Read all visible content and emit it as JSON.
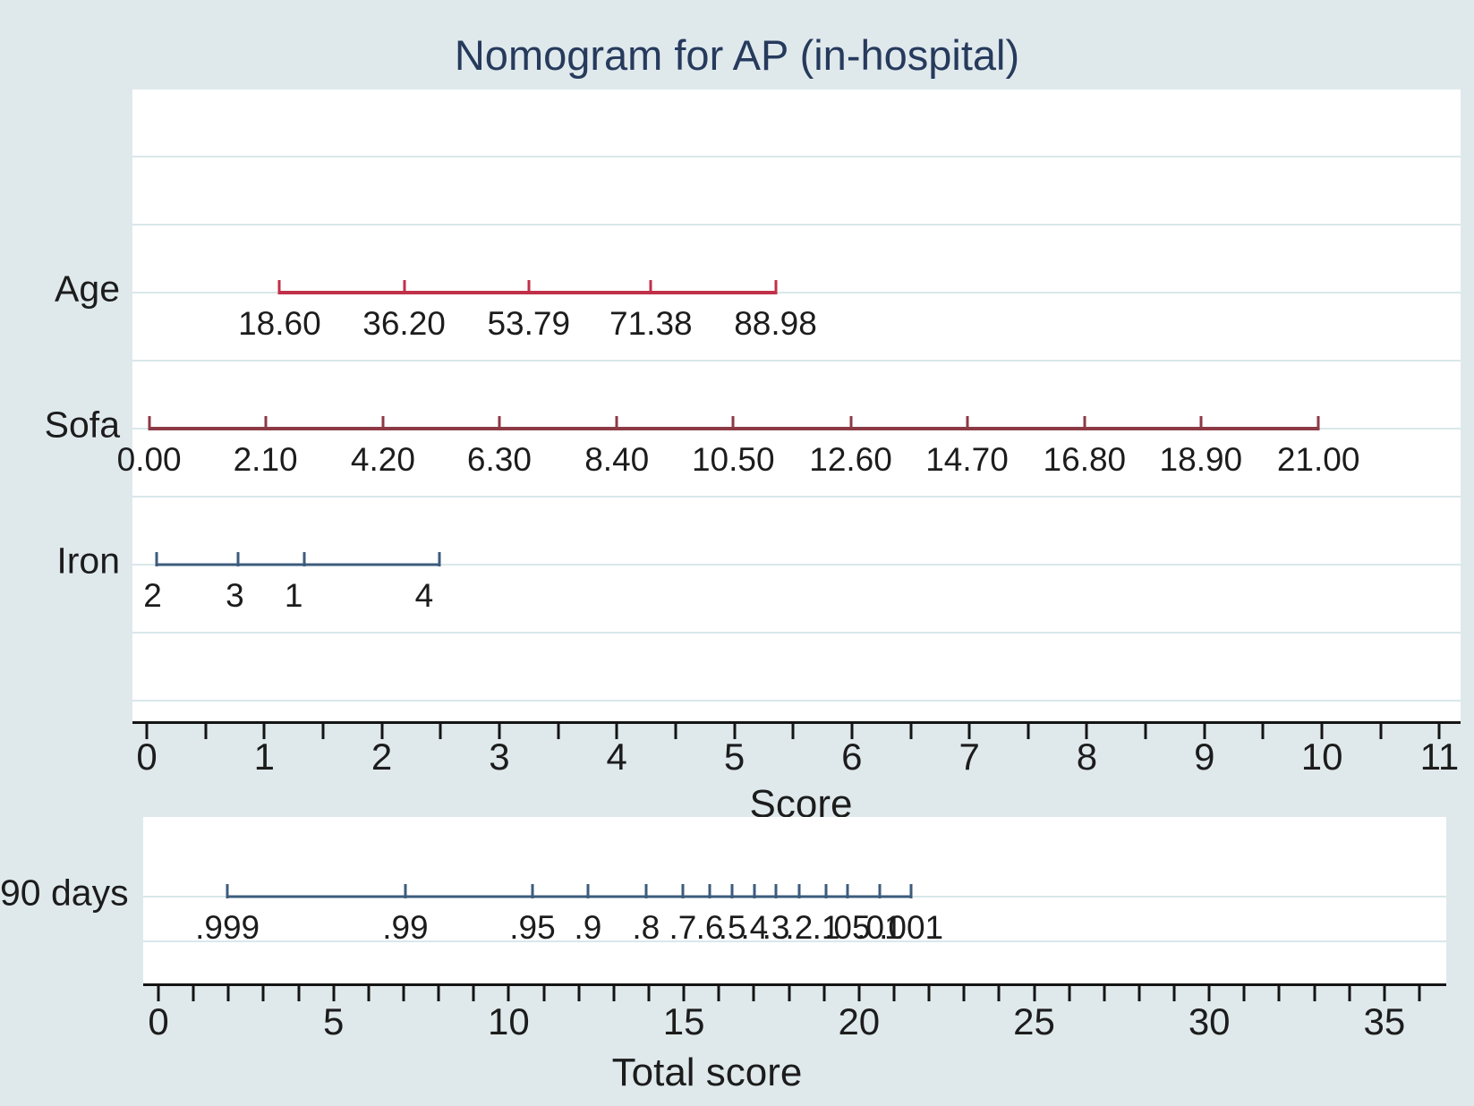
{
  "title": "Nomogram for AP (in-hospital)",
  "colors": {
    "background": "#dfe9ec",
    "plot_background": "#ffffff",
    "gridline": "#d9e7ea",
    "axis": "#141414",
    "text": "#1c1c1c",
    "title": "#263a5c",
    "age_line": "#c13049",
    "sofa_line": "#8c3a45",
    "iron_line": "#3c5c7d",
    "days90_line": "#3c5c7d"
  },
  "chart_data": [
    {
      "type": "line",
      "role": "nomogram-variable-scales",
      "xlabel": "Score",
      "grid": "horizontal",
      "x_axis": {
        "min": 0,
        "max": 11,
        "major_tick_step": 1,
        "minor_tick_step": 0.5,
        "tick_labels": [
          "0",
          "1",
          "2",
          "3",
          "4",
          "5",
          "6",
          "7",
          "8",
          "9",
          "10",
          "11"
        ]
      },
      "series": [
        {
          "name": "Age",
          "color": "#c13049",
          "points": [
            {
              "label": "18.60",
              "x": 1.13
            },
            {
              "label": "36.20",
              "x": 2.19
            },
            {
              "label": "53.79",
              "x": 3.25
            },
            {
              "label": "71.38",
              "x": 4.29
            },
            {
              "label": "88.98",
              "x": 5.35
            }
          ]
        },
        {
          "name": "Sofa",
          "color": "#8c3a45",
          "points": [
            {
              "label": "0.00",
              "x": 0.02
            },
            {
              "label": "2.10",
              "x": 1.01
            },
            {
              "label": "4.20",
              "x": 2.01
            },
            {
              "label": "6.30",
              "x": 3.0
            },
            {
              "label": "8.40",
              "x": 4.0
            },
            {
              "label": "10.50",
              "x": 4.99
            },
            {
              "label": "12.60",
              "x": 5.99
            },
            {
              "label": "14.70",
              "x": 6.98
            },
            {
              "label": "16.80",
              "x": 7.98
            },
            {
              "label": "18.90",
              "x": 8.97
            },
            {
              "label": "21.00",
              "x": 9.97
            }
          ]
        },
        {
          "name": "Iron",
          "color": "#3c5c7d",
          "points": [
            {
              "label": "2",
              "x": 0.08,
              "label_x": 0.05
            },
            {
              "label": "3",
              "x": 0.78,
              "label_x": 0.75
            },
            {
              "label": "1",
              "x": 1.34,
              "label_x": 1.25
            },
            {
              "label": "4",
              "x": 2.49,
              "label_x": 2.36
            }
          ]
        }
      ]
    },
    {
      "type": "line",
      "role": "nomogram-probability-scale",
      "xlabel": "Total score",
      "grid": "horizontal",
      "x_axis": {
        "min": 0,
        "max": 36,
        "major_tick_step": 5,
        "minor_tick_step": 1,
        "tick_labels": [
          "0",
          "5",
          "10",
          "15",
          "20",
          "25",
          "30",
          "35"
        ]
      },
      "series": [
        {
          "name": "90 days",
          "color": "#3c5c7d",
          "points": [
            {
              "label": ".999",
              "x": 1.97
            },
            {
              "label": ".99",
              "x": 7.05
            },
            {
              "label": ".95",
              "x": 10.68
            },
            {
              "label": ".9",
              "x": 12.26
            },
            {
              "label": ".8",
              "x": 13.92
            },
            {
              "label": ".7",
              "x": 14.97
            },
            {
              "label": ".6",
              "x": 15.74
            },
            {
              "label": ".5",
              "x": 16.38
            },
            {
              "label": ".4",
              "x": 17.01
            },
            {
              "label": ".3",
              "x": 17.63
            },
            {
              "label": ".2",
              "x": 18.29
            },
            {
              "label": ".1",
              "x": 19.06
            },
            {
              "label": ".05",
              "x": 19.67
            },
            {
              "label": ".01",
              "x": 20.59
            },
            {
              "label": ".001",
              "x": 21.49
            }
          ]
        }
      ]
    }
  ]
}
